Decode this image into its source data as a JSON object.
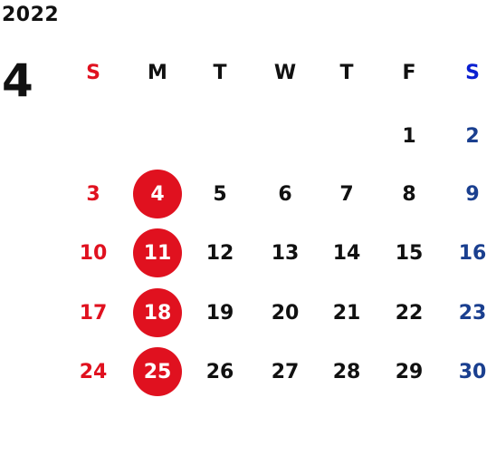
{
  "calendar": {
    "year": "2022",
    "month": "4",
    "weekdays": [
      "S",
      "M",
      "T",
      "W",
      "T",
      "F",
      "S"
    ],
    "weeks": [
      [
        "",
        "",
        "",
        "",
        "",
        "1",
        "2"
      ],
      [
        "3",
        "4",
        "5",
        "6",
        "7",
        "8",
        "9"
      ],
      [
        "10",
        "11",
        "12",
        "13",
        "14",
        "15",
        "16"
      ],
      [
        "17",
        "18",
        "19",
        "20",
        "21",
        "22",
        "23"
      ],
      [
        "24",
        "25",
        "26",
        "27",
        "28",
        "29",
        "30"
      ]
    ],
    "highlighted_days": [
      "4",
      "11",
      "18",
      "25"
    ]
  },
  "colors": {
    "sunday": "#e0111f",
    "saturday": "#1a3f8f",
    "saturday_header": "#0a1fd1",
    "weekday": "#111111",
    "highlight_circle": "#e0111f",
    "highlight_text": "#ffffff"
  }
}
